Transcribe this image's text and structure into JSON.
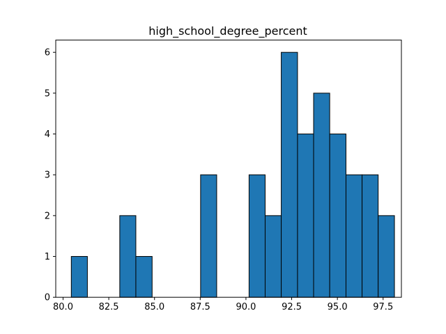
{
  "chart_data": {
    "type": "bar",
    "title": "high_school_degree_percent",
    "xlabel": "",
    "ylabel": "",
    "bar_color": "#1f77b4",
    "edge_color": "#000000",
    "bins": [
      {
        "x0": 80.45,
        "x1": 81.33,
        "count": 1
      },
      {
        "x0": 81.33,
        "x1": 82.22,
        "count": 0
      },
      {
        "x0": 82.22,
        "x1": 83.1,
        "count": 0
      },
      {
        "x0": 83.1,
        "x1": 83.98,
        "count": 2
      },
      {
        "x0": 83.98,
        "x1": 84.87,
        "count": 1
      },
      {
        "x0": 84.87,
        "x1": 85.75,
        "count": 0
      },
      {
        "x0": 85.75,
        "x1": 86.63,
        "count": 0
      },
      {
        "x0": 86.63,
        "x1": 87.52,
        "count": 0
      },
      {
        "x0": 87.52,
        "x1": 88.4,
        "count": 3
      },
      {
        "x0": 88.4,
        "x1": 89.28,
        "count": 0
      },
      {
        "x0": 89.28,
        "x1": 90.17,
        "count": 0
      },
      {
        "x0": 90.17,
        "x1": 91.05,
        "count": 3
      },
      {
        "x0": 91.05,
        "x1": 91.93,
        "count": 2
      },
      {
        "x0": 91.93,
        "x1": 92.82,
        "count": 6
      },
      {
        "x0": 92.82,
        "x1": 93.7,
        "count": 4
      },
      {
        "x0": 93.7,
        "x1": 94.58,
        "count": 5
      },
      {
        "x0": 94.58,
        "x1": 95.47,
        "count": 4
      },
      {
        "x0": 95.47,
        "x1": 96.35,
        "count": 3
      },
      {
        "x0": 96.35,
        "x1": 97.23,
        "count": 3
      },
      {
        "x0": 97.23,
        "x1": 98.12,
        "count": 2
      }
    ],
    "xlim": [
      79.6,
      98.5
    ],
    "ylim": [
      0,
      6.3
    ],
    "x_ticks": [
      80.0,
      82.5,
      85.0,
      87.5,
      90.0,
      92.5,
      95.0,
      97.5
    ],
    "x_tick_labels": [
      "80.0",
      "82.5",
      "85.0",
      "87.5",
      "90.0",
      "92.5",
      "95.0",
      "97.5"
    ],
    "y_ticks": [
      0,
      1,
      2,
      3,
      4,
      5,
      6
    ],
    "y_tick_labels": [
      "0",
      "1",
      "2",
      "3",
      "4",
      "5",
      "6"
    ],
    "grid": false,
    "legend": "none"
  }
}
